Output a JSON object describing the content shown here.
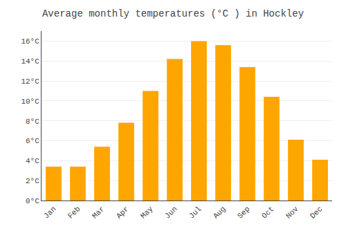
{
  "chart_data": {
    "type": "bar",
    "title": "Average monthly temperatures (°C ) in Hockley",
    "categories": [
      "Jan",
      "Feb",
      "Mar",
      "Apr",
      "May",
      "Jun",
      "Jul",
      "Aug",
      "Sep",
      "Oct",
      "Nov",
      "Dec"
    ],
    "values": [
      3.4,
      3.4,
      5.4,
      7.8,
      11.0,
      14.2,
      16.0,
      15.6,
      13.4,
      10.4,
      6.1,
      4.1
    ],
    "color": "#FFA500",
    "ylim": [
      0,
      17
    ],
    "yticks": [
      {
        "value": 0,
        "label": "0°C"
      },
      {
        "value": 2,
        "label": "2°C"
      },
      {
        "value": 4,
        "label": "4°C"
      },
      {
        "value": 6,
        "label": "6°C"
      },
      {
        "value": 8,
        "label": "8°C"
      },
      {
        "value": 10,
        "label": "10°C"
      },
      {
        "value": 12,
        "label": "12°C"
      },
      {
        "value": 14,
        "label": "14°C"
      },
      {
        "value": 16,
        "label": "16°C"
      }
    ],
    "grid": true
  }
}
